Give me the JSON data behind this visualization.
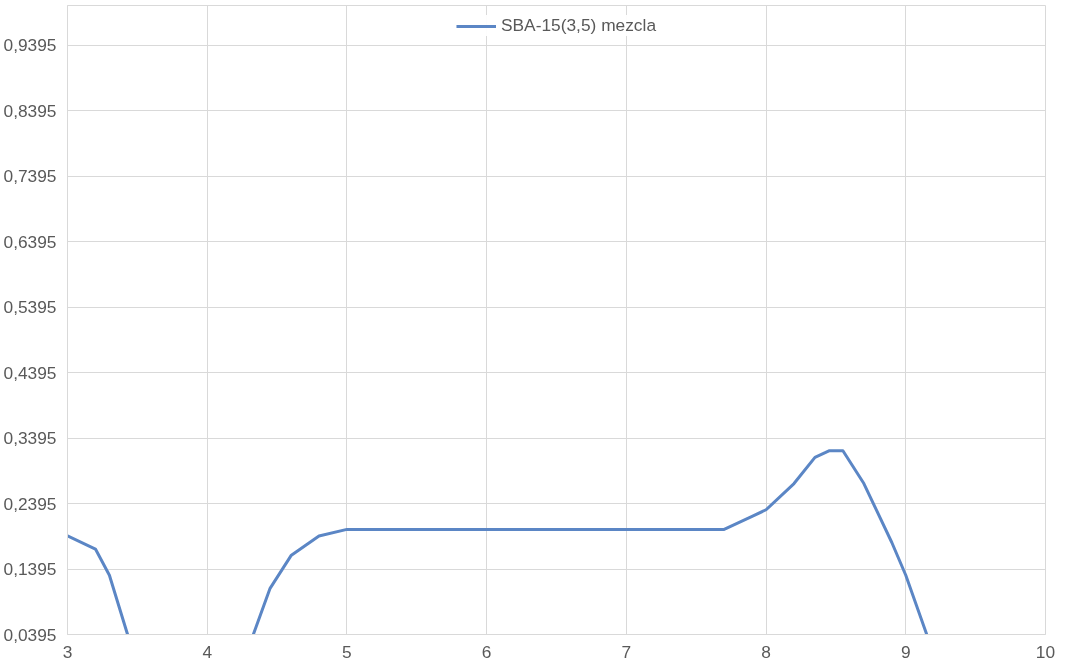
{
  "chart_data": {
    "type": "line",
    "x": [
      3,
      3.2,
      3.3,
      3.43,
      3.8,
      4.33,
      4.45,
      4.6,
      4.8,
      5,
      5.5,
      6,
      7,
      7.5,
      7.7,
      7.9,
      8.0,
      8.2,
      8.35,
      8.45,
      8.55,
      8.7,
      8.9,
      9.0,
      9.15
    ],
    "series": [
      {
        "name": "SBA-15(3,5) mezcla",
        "color": "#5b86c5",
        "values": [
          0.19,
          0.17,
          0.13,
          0.0395,
          null,
          0.0395,
          0.11,
          0.16,
          0.19,
          0.2,
          0.2,
          0.2,
          0.2,
          0.2,
          0.2,
          0.22,
          0.23,
          0.27,
          0.31,
          0.32,
          0.32,
          0.27,
          0.18,
          0.13,
          0.0395
        ]
      }
    ],
    "xlim": [
      3,
      10
    ],
    "xticks": [
      3,
      4,
      5,
      6,
      7,
      8,
      9,
      10
    ],
    "ylim": [
      0.0395,
      1.0
    ],
    "yticks": [
      {
        "value": 0.0395,
        "label": "0,0395"
      },
      {
        "value": 0.1395,
        "label": "0,1395"
      },
      {
        "value": 0.2395,
        "label": "0,2395"
      },
      {
        "value": 0.3395,
        "label": "0,3395"
      },
      {
        "value": 0.4395,
        "label": "0,4395"
      },
      {
        "value": 0.5395,
        "label": "0,5395"
      },
      {
        "value": 0.6395,
        "label": "0,6395"
      },
      {
        "value": 0.7395,
        "label": "0,7395"
      },
      {
        "value": 0.8395,
        "label": "0,8395"
      },
      {
        "value": 0.9395,
        "label": "0,9395"
      }
    ],
    "grid": true,
    "legend": "top",
    "line_style": "solid",
    "marker": "none"
  }
}
